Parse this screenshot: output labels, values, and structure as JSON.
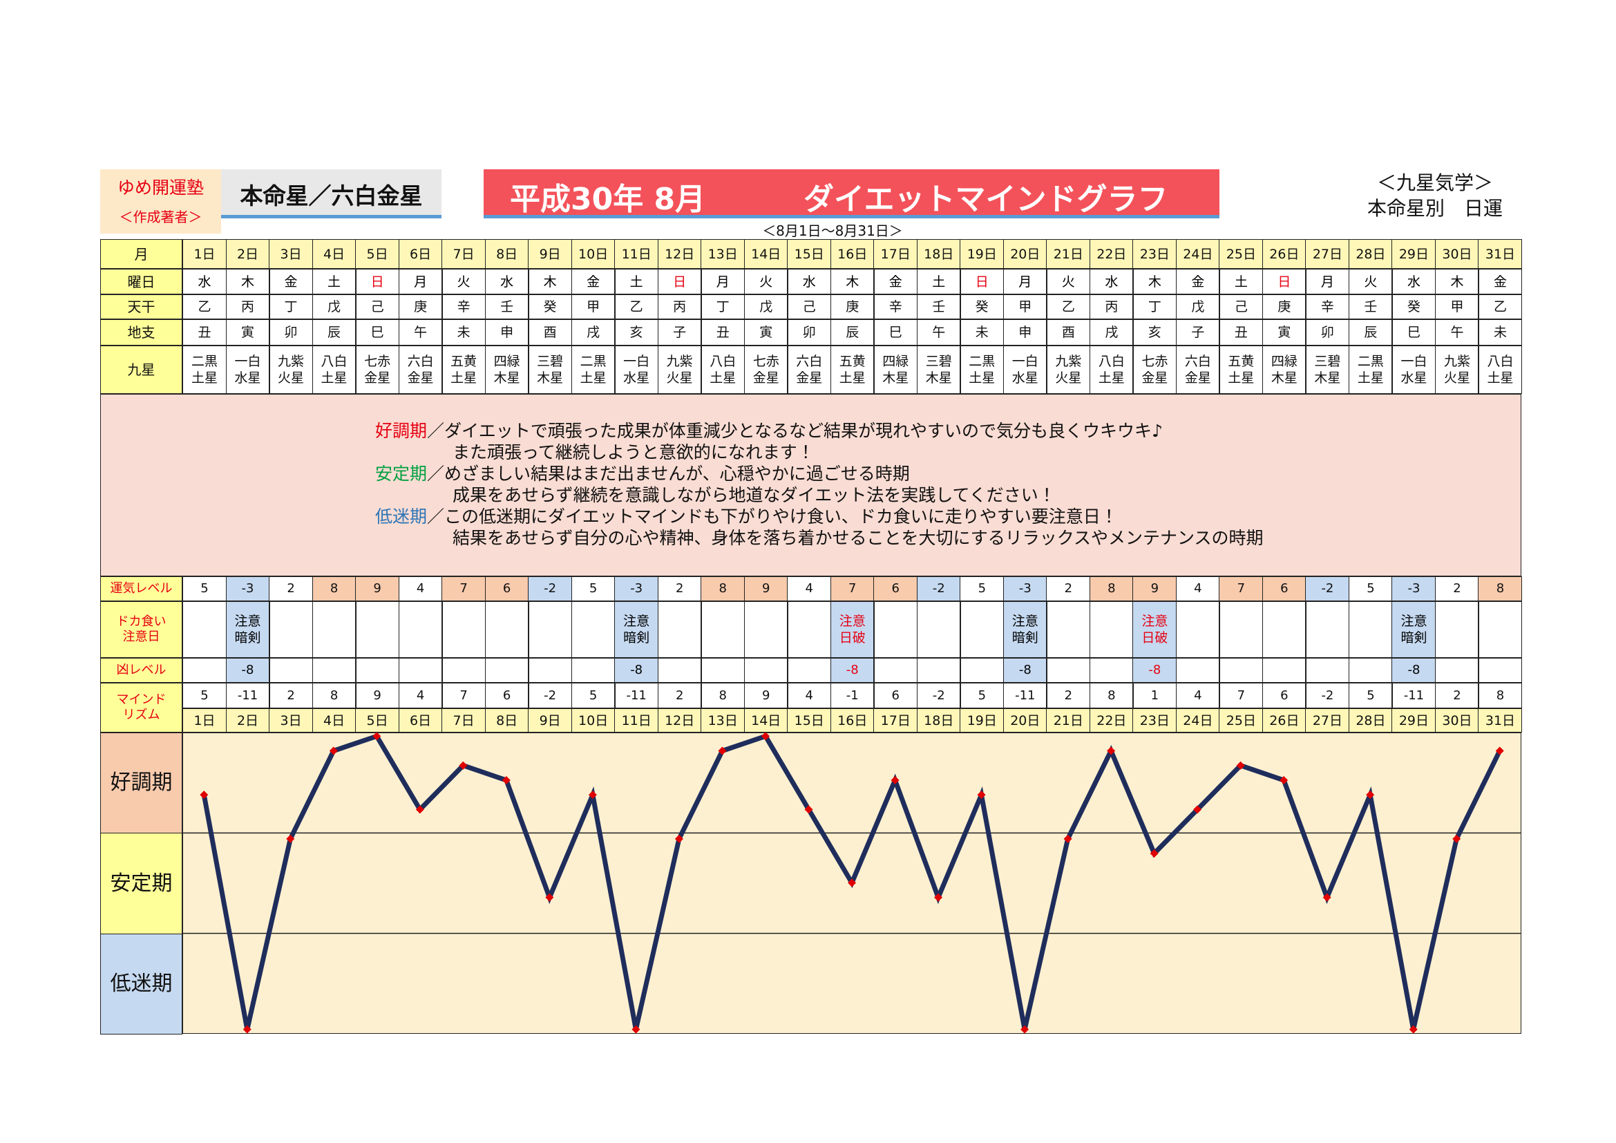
{
  "header": {
    "school": "ゆめ開運塾",
    "author": "＜作成著者＞",
    "star": "本命星／六白金星",
    "title_date": "平成30年 8月",
    "title": "ダイエットマインドグラフ",
    "range": "＜8月1日～8月31日＞",
    "system": "＜九星気学＞",
    "subtitle": "本命星別　日運"
  },
  "table": {
    "labels": {
      "month": "月",
      "weekday": "曜日",
      "stem": "天干",
      "branch": "地支",
      "star": "九星",
      "level": "運気レベル",
      "caution": "ドカ食い\n注意日",
      "kyou": "凶レベル",
      "rhythm": "マインド\nリズム"
    },
    "days": [
      "1日",
      "2日",
      "3日",
      "4日",
      "5日",
      "6日",
      "7日",
      "8日",
      "9日",
      "10日",
      "11日",
      "12日",
      "13日",
      "14日",
      "15日",
      "16日",
      "17日",
      "18日",
      "19日",
      "20日",
      "21日",
      "22日",
      "23日",
      "24日",
      "25日",
      "26日",
      "27日",
      "28日",
      "29日",
      "30日",
      "31日"
    ],
    "weekdays": [
      "水",
      "木",
      "金",
      "土",
      "日",
      "月",
      "火",
      "水",
      "木",
      "金",
      "土",
      "日",
      "月",
      "火",
      "水",
      "木",
      "金",
      "土",
      "日",
      "月",
      "火",
      "水",
      "木",
      "金",
      "土",
      "日",
      "月",
      "火",
      "水",
      "木",
      "金"
    ],
    "weekday_colors": [
      "#000",
      "#000",
      "#000",
      "#000",
      "#e60012",
      "#000",
      "#000",
      "#000",
      "#000",
      "#000",
      "#000",
      "#e60012",
      "#000",
      "#000",
      "#000",
      "#000",
      "#000",
      "#000",
      "#e60012",
      "#000",
      "#000",
      "#000",
      "#000",
      "#000",
      "#000",
      "#e60012",
      "#000",
      "#000",
      "#000",
      "#000",
      "#000"
    ],
    "stems": [
      "乙",
      "丙",
      "丁",
      "戊",
      "己",
      "庚",
      "辛",
      "壬",
      "癸",
      "甲",
      "乙",
      "丙",
      "丁",
      "戊",
      "己",
      "庚",
      "辛",
      "壬",
      "癸",
      "甲",
      "乙",
      "丙",
      "丁",
      "戊",
      "己",
      "庚",
      "辛",
      "壬",
      "癸",
      "甲",
      "乙"
    ],
    "branches": [
      "丑",
      "寅",
      "卯",
      "辰",
      "巳",
      "午",
      "未",
      "申",
      "酉",
      "戌",
      "亥",
      "子",
      "丑",
      "寅",
      "卯",
      "辰",
      "巳",
      "午",
      "未",
      "申",
      "酉",
      "戌",
      "亥",
      "子",
      "丑",
      "寅",
      "卯",
      "辰",
      "巳",
      "午",
      "未"
    ],
    "stars": [
      "二黒\n土星",
      "一白\n水星",
      "九紫\n火星",
      "八白\n土星",
      "七赤\n金星",
      "六白\n金星",
      "五黄\n土星",
      "四緑\n木星",
      "三碧\n木星",
      "二黒\n土星",
      "一白\n水星",
      "九紫\n火星",
      "八白\n土星",
      "七赤\n金星",
      "六白\n金星",
      "五黄\n土星",
      "四緑\n木星",
      "三碧\n木星",
      "二黒\n土星",
      "一白\n水星",
      "九紫\n火星",
      "八白\n土星",
      "七赤\n金星",
      "六白\n金星",
      "五黄\n土星",
      "四緑\n木星",
      "三碧\n木星",
      "二黒\n土星",
      "一白\n水星",
      "九紫\n火星",
      "八白\n土星"
    ],
    "levels": [
      5,
      -3,
      2,
      8,
      9,
      4,
      7,
      6,
      -2,
      5,
      -3,
      2,
      8,
      9,
      4,
      7,
      6,
      -2,
      5,
      -3,
      2,
      8,
      9,
      4,
      7,
      6,
      -2,
      5,
      -3,
      2,
      8
    ],
    "level_bg": [
      "#ffffff",
      "#c5d9f1",
      "#ffffff",
      "#f8cbad",
      "#f8cbad",
      "#ffffff",
      "#f8cbad",
      "#f8cbad",
      "#c5d9f1",
      "#ffffff",
      "#c5d9f1",
      "#ffffff",
      "#f8cbad",
      "#f8cbad",
      "#ffffff",
      "#f8cbad",
      "#f8cbad",
      "#c5d9f1",
      "#ffffff",
      "#c5d9f1",
      "#ffffff",
      "#f8cbad",
      "#f8cbad",
      "#ffffff",
      "#f8cbad",
      "#f8cbad",
      "#c5d9f1",
      "#ffffff",
      "#c5d9f1",
      "#ffffff",
      "#f8cbad"
    ],
    "cautions": [
      null,
      {
        "text": "注意\n暗剣",
        "color": "#000000"
      },
      null,
      null,
      null,
      null,
      null,
      null,
      null,
      null,
      {
        "text": "注意\n暗剣",
        "color": "#000000"
      },
      null,
      null,
      null,
      null,
      {
        "text": "注意\n日破",
        "color": "#e60012"
      },
      null,
      null,
      null,
      {
        "text": "注意\n暗剣",
        "color": "#000000"
      },
      null,
      null,
      {
        "text": "注意\n日破",
        "color": "#e60012"
      },
      null,
      null,
      null,
      null,
      null,
      {
        "text": "注意\n暗剣",
        "color": "#000000"
      },
      null,
      null
    ],
    "kyou": [
      null,
      {
        "value": -8,
        "color": "#000000"
      },
      null,
      null,
      null,
      null,
      null,
      null,
      null,
      null,
      {
        "value": -8,
        "color": "#000000"
      },
      null,
      null,
      null,
      null,
      {
        "value": -8,
        "color": "#e60012"
      },
      null,
      null,
      null,
      {
        "value": -8,
        "color": "#000000"
      },
      null,
      null,
      {
        "value": -8,
        "color": "#e60012"
      },
      null,
      null,
      null,
      null,
      null,
      {
        "value": -8,
        "color": "#000000"
      },
      null,
      null
    ],
    "rhythm": [
      5,
      -11,
      2,
      8,
      9,
      4,
      7,
      6,
      -2,
      5,
      -11,
      2,
      8,
      9,
      4,
      -1,
      6,
      -2,
      5,
      -11,
      2,
      8,
      1,
      4,
      7,
      6,
      -2,
      5,
      -11,
      2,
      8
    ]
  },
  "legend": [
    {
      "term": "好調期",
      "color": "#e60012",
      "text": "／ダイエットで頑張った成果が体重減少となるなど結果が現れやすいので気分も良くウキウキ♪",
      "more": "また頑張って継続しようと意欲的になれます！"
    },
    {
      "term": "安定期",
      "color": "#00a040",
      "text": "／めざましい結果はまだ出ませんが、心穏やかに過ごせる時期",
      "more": "成果をあせらず継続を意識しながら地道なダイエット法を実践してください！"
    },
    {
      "term": "低迷期",
      "color": "#2e75b6",
      "text": "／この低迷期にダイエットマインドも下がりやけ食い、ドカ食いに走りやすい要注意日！",
      "more": "結果をあせらず自分の心や精神、身体を落ち着かせることを大切にするリラックスやメンテナンスの時期"
    }
  ],
  "chart": {
    "ylim": [
      -11.3,
      9.25
    ],
    "bands": [
      "好調期",
      "安定期",
      "低迷期"
    ],
    "band_colors": [
      "#f8cbad",
      "#ffff99",
      "#c5d9f1"
    ],
    "line_color": "#1f2d5c",
    "point_color": "#e00000"
  }
}
